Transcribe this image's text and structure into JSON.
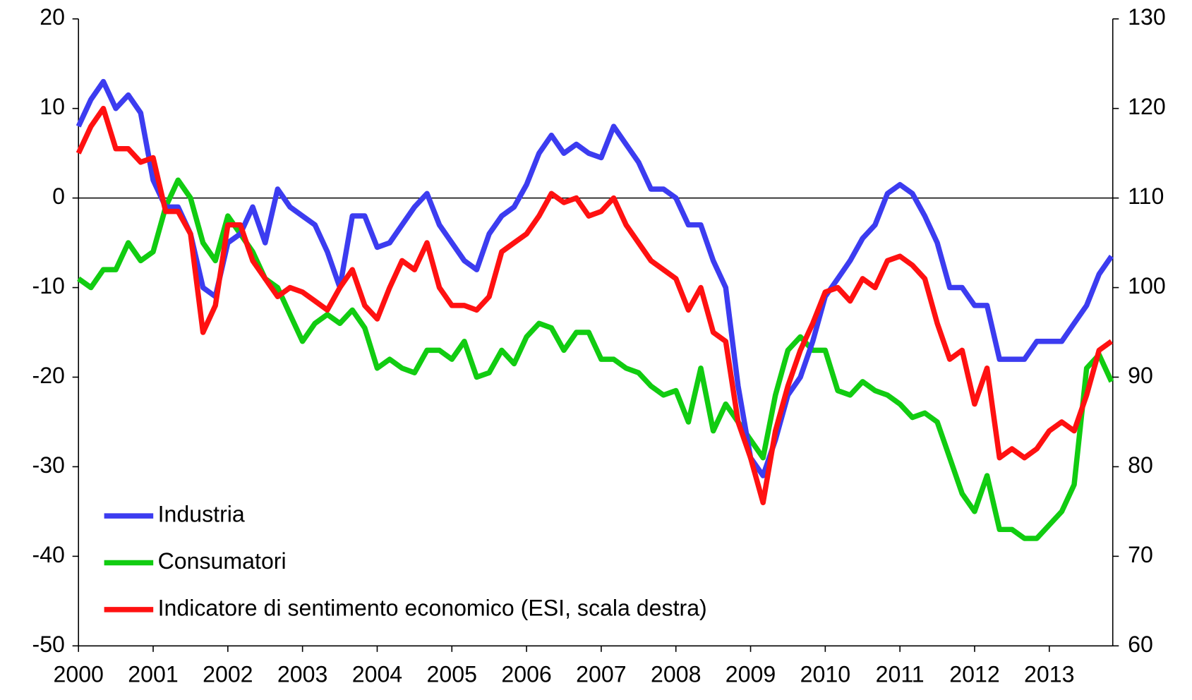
{
  "chart_data": {
    "type": "line",
    "x": [
      2000,
      2000.167,
      2000.333,
      2000.5,
      2000.667,
      2000.833,
      2001,
      2001.167,
      2001.333,
      2001.5,
      2001.667,
      2001.833,
      2002,
      2002.167,
      2002.333,
      2002.5,
      2002.667,
      2002.833,
      2003,
      2003.167,
      2003.333,
      2003.5,
      2003.667,
      2003.833,
      2004,
      2004.167,
      2004.333,
      2004.5,
      2004.667,
      2004.833,
      2005,
      2005.167,
      2005.333,
      2005.5,
      2005.667,
      2005.833,
      2006,
      2006.167,
      2006.333,
      2006.5,
      2006.667,
      2006.833,
      2007,
      2007.167,
      2007.333,
      2007.5,
      2007.667,
      2007.833,
      2008,
      2008.167,
      2008.333,
      2008.5,
      2008.667,
      2008.833,
      2009,
      2009.167,
      2009.333,
      2009.5,
      2009.667,
      2009.833,
      2010,
      2010.167,
      2010.333,
      2010.5,
      2010.667,
      2010.833,
      2011,
      2011.167,
      2011.333,
      2011.5,
      2011.667,
      2011.833,
      2012,
      2012.167,
      2012.333,
      2012.5,
      2012.667,
      2012.833,
      2013,
      2013.167,
      2013.333,
      2013.5,
      2013.667,
      2013.833
    ],
    "series": [
      {
        "name": "Industria",
        "color": "#3c3cf0",
        "values": [
          8,
          11,
          13,
          10,
          11.5,
          9.5,
          2,
          -1,
          -1,
          -4,
          -10,
          -11,
          -5,
          -4,
          -1,
          -5,
          1,
          -1,
          -2,
          -3,
          -6,
          -10,
          -2,
          -2,
          -5.5,
          -5,
          -3,
          -1,
          0.5,
          -3,
          -5,
          -7,
          -8,
          -4,
          -2,
          -1,
          1.5,
          5,
          7,
          5,
          6,
          5,
          4.5,
          8,
          6,
          4,
          1,
          1,
          0,
          -3,
          -3,
          -7,
          -10,
          -21,
          -29,
          -31,
          -27,
          -22,
          -20,
          -16,
          -11,
          -9,
          -7,
          -4.5,
          -3,
          0.5,
          1.5,
          0.5,
          -2,
          -5,
          -10,
          -10,
          -12,
          -12,
          -18,
          -18,
          -18,
          -16,
          -16,
          -16,
          -14,
          -12,
          -8.5,
          -6.5
        ]
      },
      {
        "name": "Consumatori",
        "color": "#11cc11",
        "values": [
          -9,
          -10,
          -8,
          -8,
          -5,
          -7,
          -6,
          -1,
          2,
          0,
          -5,
          -7,
          -2,
          -4,
          -6,
          -9,
          -10,
          -13,
          -16,
          -14,
          -13,
          -14,
          -12.5,
          -14.5,
          -19,
          -18,
          -19,
          -19.5,
          -17,
          -17,
          -18,
          -16,
          -20,
          -19.5,
          -17,
          -18.5,
          -15.5,
          -14,
          -14.5,
          -17,
          -15,
          -15,
          -18,
          -18,
          -19,
          -19.5,
          -21,
          -22,
          -21.5,
          -25,
          -19,
          -26,
          -23,
          -25,
          -27,
          -29,
          -22,
          -17,
          -15.5,
          -17,
          -17,
          -21.5,
          -22,
          -20.5,
          -21.5,
          -22,
          -23,
          -24.5,
          -24,
          -25,
          -29,
          -33,
          -35,
          -31,
          -37,
          -37,
          -38,
          -38,
          -36.5,
          -35,
          -32,
          -19,
          -17.5,
          -20.5
        ]
      },
      {
        "name": "Indicatore di sentimento economico (ESI, scala destra)",
        "color": "#ff1111",
        "axis": "y2",
        "values": [
          115,
          118,
          120,
          115.5,
          115.5,
          114,
          114.5,
          108.5,
          108.5,
          106,
          95,
          98,
          107,
          107,
          103,
          101,
          99,
          100,
          99.5,
          98.5,
          97.5,
          100,
          102,
          98,
          96.5,
          100,
          103,
          102,
          105,
          100,
          98,
          98,
          97.5,
          99,
          104,
          105,
          106,
          108,
          110.5,
          109.5,
          110,
          108,
          108.5,
          110,
          107,
          105,
          103,
          102,
          101,
          97.5,
          100,
          95,
          94,
          85,
          81,
          76,
          84,
          89,
          93,
          96,
          99.5,
          100,
          98.5,
          101,
          100,
          103,
          103.5,
          102.5,
          101,
          96,
          92,
          93,
          87,
          91,
          81,
          82,
          81,
          82,
          84,
          85,
          84,
          88,
          93,
          94
        ]
      }
    ],
    "xlim": [
      2000,
      2013.85
    ],
    "xticks": [
      2000,
      2001,
      2002,
      2003,
      2004,
      2005,
      2006,
      2007,
      2008,
      2009,
      2010,
      2011,
      2012,
      2013
    ],
    "ylim": [
      -50,
      20
    ],
    "yticks": [
      -50,
      -40,
      -30,
      -20,
      -10,
      0,
      10,
      20
    ],
    "y2lim": [
      60,
      130
    ],
    "y2ticks": [
      60,
      70,
      80,
      90,
      100,
      110,
      120,
      130
    ],
    "zero_line": true,
    "legend": "lower left"
  }
}
